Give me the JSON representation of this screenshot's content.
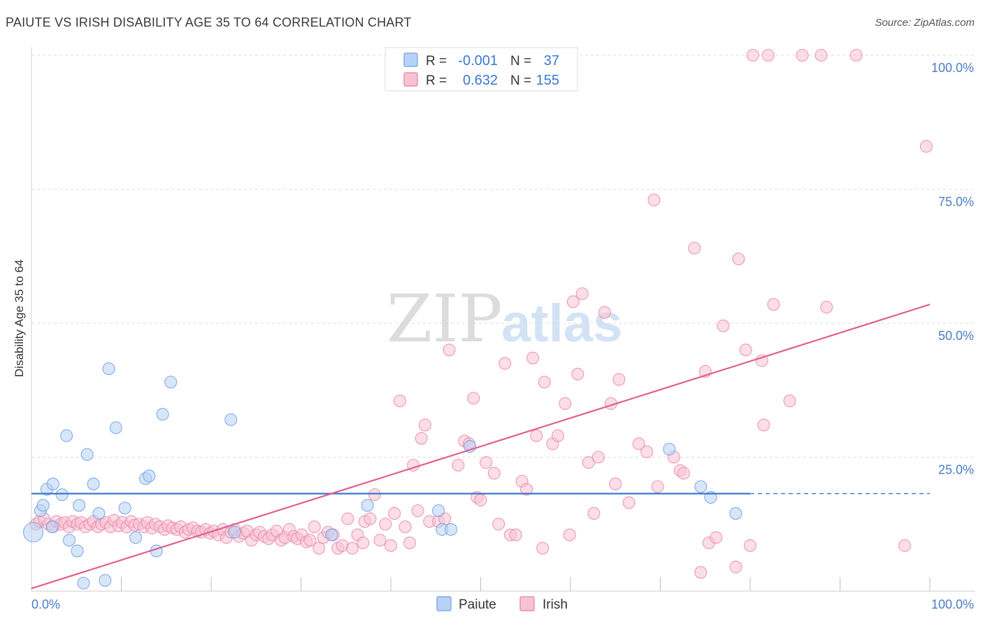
{
  "title": "PAIUTE VS IRISH DISABILITY AGE 35 TO 64 CORRELATION CHART",
  "source": "Source: ZipAtlas.com",
  "watermark": {
    "zip": "ZIP",
    "atlas": "atlas"
  },
  "colors": {
    "paiute": "#6fa0e0",
    "paiute_fill": "#b8d2f5",
    "irish": "#e87ca2",
    "irish_fill": "#f7c3d4",
    "grid": "#dcdcdc",
    "tick_label": "#4a7cc9",
    "paiute_line": "#3a78d0",
    "irish_line": "#e0608e"
  },
  "legend_top": [
    {
      "series": "Paiute",
      "r_label": "R =",
      "r_value": "-0.001",
      "n_label": "N =",
      "n_value": "37"
    },
    {
      "series": "Irish",
      "r_label": "R =",
      "r_value": "0.632",
      "n_label": "N =",
      "n_value": "155"
    }
  ],
  "legend_bottom": [
    "Paiute",
    "Irish"
  ],
  "chart_data": {
    "type": "scatter",
    "title": "PAIUTE VS IRISH DISABILITY AGE 35 TO 64 CORRELATION CHART",
    "xlabel": "",
    "ylabel": "Disability Age 35 to 64",
    "xlim": [
      0,
      100
    ],
    "ylim": [
      0,
      100
    ],
    "x_tick_labels": [
      {
        "value": 0,
        "label": "0.0%"
      },
      {
        "value": 100,
        "label": "100.0%"
      }
    ],
    "y_tick_labels": [
      {
        "value": 25,
        "label": "25.0%"
      },
      {
        "value": 50,
        "label": "50.0%"
      },
      {
        "value": 75,
        "label": "75.0%"
      },
      {
        "value": 100,
        "label": "100.0%"
      }
    ],
    "grid": true,
    "series": [
      {
        "name": "Paiute",
        "points": [
          [
            0.2,
            11.0
          ],
          [
            1.0,
            15.0
          ],
          [
            1.3,
            16.0
          ],
          [
            1.7,
            19.0
          ],
          [
            2.3,
            12.0
          ],
          [
            2.4,
            20.0
          ],
          [
            3.4,
            18.0
          ],
          [
            3.9,
            29.0
          ],
          [
            4.2,
            9.5
          ],
          [
            5.1,
            7.5
          ],
          [
            5.3,
            16.0
          ],
          [
            5.8,
            1.5
          ],
          [
            6.2,
            25.5
          ],
          [
            6.9,
            20.0
          ],
          [
            7.5,
            14.5
          ],
          [
            8.2,
            2.0
          ],
          [
            8.6,
            41.5
          ],
          [
            9.4,
            30.5
          ],
          [
            10.4,
            15.5
          ],
          [
            11.6,
            10.0
          ],
          [
            12.7,
            21.0
          ],
          [
            13.1,
            21.5
          ],
          [
            13.9,
            7.5
          ],
          [
            14.6,
            33.0
          ],
          [
            15.5,
            39.0
          ],
          [
            22.2,
            32.0
          ],
          [
            22.6,
            11.0
          ],
          [
            33.4,
            10.5
          ],
          [
            37.4,
            16.0
          ],
          [
            45.3,
            15.0
          ],
          [
            45.7,
            11.5
          ],
          [
            46.7,
            11.5
          ],
          [
            48.8,
            27.0
          ],
          [
            71.0,
            26.5
          ],
          [
            74.5,
            19.5
          ],
          [
            75.6,
            17.5
          ],
          [
            78.4,
            14.5
          ]
        ],
        "trend": {
          "x": [
            0,
            80
          ],
          "y": [
            18.2,
            18.2
          ],
          "dashed_extension_to": 100
        }
      },
      {
        "name": "Irish",
        "points": [
          [
            0.5,
            12.5
          ],
          [
            0.9,
            13.0
          ],
          [
            1.4,
            13.5
          ],
          [
            1.9,
            12.5
          ],
          [
            2.4,
            12.0
          ],
          [
            2.8,
            13.0
          ],
          [
            3.3,
            12.5
          ],
          [
            3.7,
            12.8
          ],
          [
            4.2,
            12.0
          ],
          [
            4.6,
            13.0
          ],
          [
            5.1,
            12.5
          ],
          [
            5.5,
            12.8
          ],
          [
            6.0,
            12.0
          ],
          [
            6.5,
            12.5
          ],
          [
            6.9,
            13.0
          ],
          [
            7.4,
            12.0
          ],
          [
            7.8,
            12.5
          ],
          [
            8.3,
            12.8
          ],
          [
            8.8,
            12.0
          ],
          [
            9.2,
            13.2
          ],
          [
            9.7,
            12.2
          ],
          [
            10.1,
            12.8
          ],
          [
            10.6,
            12.0
          ],
          [
            11.1,
            13.0
          ],
          [
            11.5,
            12.3
          ],
          [
            12.0,
            12.5
          ],
          [
            12.5,
            12.0
          ],
          [
            12.9,
            12.8
          ],
          [
            13.4,
            11.8
          ],
          [
            13.8,
            12.5
          ],
          [
            14.3,
            12.0
          ],
          [
            14.8,
            11.5
          ],
          [
            15.2,
            12.2
          ],
          [
            15.7,
            11.8
          ],
          [
            16.2,
            11.5
          ],
          [
            16.6,
            12.0
          ],
          [
            17.1,
            11.0
          ],
          [
            17.5,
            11.5
          ],
          [
            18.0,
            11.8
          ],
          [
            18.5,
            11.2
          ],
          [
            18.9,
            11.0
          ],
          [
            19.4,
            11.5
          ],
          [
            19.9,
            10.8
          ],
          [
            20.3,
            11.2
          ],
          [
            20.8,
            10.5
          ],
          [
            21.3,
            11.5
          ],
          [
            21.7,
            10.0
          ],
          [
            22.2,
            11.0
          ],
          [
            22.6,
            11.5
          ],
          [
            23.1,
            10.2
          ],
          [
            23.6,
            10.8
          ],
          [
            24.0,
            11.2
          ],
          [
            24.5,
            9.5
          ],
          [
            25.0,
            10.5
          ],
          [
            25.4,
            11.0
          ],
          [
            25.9,
            10.2
          ],
          [
            26.4,
            9.8
          ],
          [
            26.8,
            10.5
          ],
          [
            27.3,
            11.2
          ],
          [
            27.8,
            9.5
          ],
          [
            28.2,
            10.0
          ],
          [
            28.7,
            11.5
          ],
          [
            29.2,
            10.2
          ],
          [
            29.6,
            9.8
          ],
          [
            30.1,
            10.5
          ],
          [
            30.6,
            9.2
          ],
          [
            31.0,
            9.5
          ],
          [
            31.5,
            12.0
          ],
          [
            32.0,
            8.0
          ],
          [
            32.5,
            10.0
          ],
          [
            33.0,
            11.0
          ],
          [
            33.6,
            10.5
          ],
          [
            34.1,
            8.0
          ],
          [
            34.6,
            8.5
          ],
          [
            35.2,
            13.5
          ],
          [
            35.7,
            8.0
          ],
          [
            36.3,
            10.5
          ],
          [
            36.9,
            9.0
          ],
          [
            37.1,
            13.0
          ],
          [
            37.7,
            13.5
          ],
          [
            38.2,
            18.0
          ],
          [
            38.8,
            9.5
          ],
          [
            39.4,
            12.5
          ],
          [
            40.0,
            8.5
          ],
          [
            40.4,
            14.5
          ],
          [
            41.0,
            35.5
          ],
          [
            41.6,
            12.0
          ],
          [
            42.1,
            9.0
          ],
          [
            42.5,
            23.5
          ],
          [
            43.0,
            15.0
          ],
          [
            43.4,
            28.5
          ],
          [
            43.8,
            31.0
          ],
          [
            44.3,
            13.0
          ],
          [
            45.3,
            13.0
          ],
          [
            46.0,
            13.5
          ],
          [
            46.5,
            45.0
          ],
          [
            47.5,
            23.5
          ],
          [
            48.2,
            28.0
          ],
          [
            48.7,
            27.5
          ],
          [
            49.2,
            36.0
          ],
          [
            49.6,
            17.5
          ],
          [
            50.0,
            17.0
          ],
          [
            50.6,
            24.0
          ],
          [
            51.5,
            22.0
          ],
          [
            52.0,
            12.5
          ],
          [
            52.7,
            42.5
          ],
          [
            53.3,
            10.5
          ],
          [
            53.9,
            10.5
          ],
          [
            54.6,
            20.5
          ],
          [
            55.1,
            19.0
          ],
          [
            55.8,
            43.5
          ],
          [
            56.2,
            29.0
          ],
          [
            56.9,
            8.0
          ],
          [
            57.1,
            39.0
          ],
          [
            58.0,
            27.5
          ],
          [
            58.6,
            29.0
          ],
          [
            59.4,
            35.0
          ],
          [
            59.9,
            10.5
          ],
          [
            60.3,
            54.0
          ],
          [
            60.8,
            40.5
          ],
          [
            61.3,
            55.5
          ],
          [
            62.0,
            24.0
          ],
          [
            62.6,
            14.5
          ],
          [
            63.1,
            25.0
          ],
          [
            63.8,
            52.0
          ],
          [
            64.5,
            35.0
          ],
          [
            65.0,
            20.0
          ],
          [
            65.4,
            39.5
          ],
          [
            66.5,
            16.5
          ],
          [
            67.6,
            27.5
          ],
          [
            68.5,
            26.0
          ],
          [
            69.3,
            73.0
          ],
          [
            69.7,
            19.5
          ],
          [
            71.5,
            25.0
          ],
          [
            72.2,
            22.5
          ],
          [
            72.6,
            22.0
          ],
          [
            73.8,
            64.0
          ],
          [
            74.5,
            3.5
          ],
          [
            75.0,
            41.0
          ],
          [
            75.4,
            9.0
          ],
          [
            76.2,
            10.0
          ],
          [
            77.0,
            49.5
          ],
          [
            78.4,
            4.5
          ],
          [
            78.7,
            62.0
          ],
          [
            79.5,
            45.0
          ],
          [
            80.0,
            8.5
          ],
          [
            81.3,
            43.0
          ],
          [
            81.5,
            31.0
          ],
          [
            82.6,
            53.5
          ],
          [
            84.4,
            35.5
          ],
          [
            80.3,
            100.0
          ],
          [
            82.0,
            100.0
          ],
          [
            85.8,
            100.0
          ],
          [
            87.9,
            100.0
          ],
          [
            91.8,
            100.0
          ],
          [
            88.5,
            53.0
          ],
          [
            97.2,
            8.5
          ],
          [
            99.6,
            83.0
          ]
        ],
        "trend": {
          "x": [
            0,
            100
          ],
          "y": [
            0.5,
            53.5
          ]
        }
      }
    ]
  }
}
